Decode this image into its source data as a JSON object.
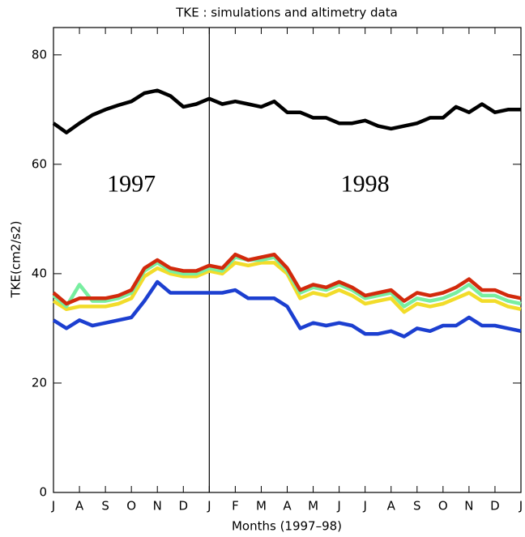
{
  "chart_data": {
    "type": "line",
    "title": "TKE : simulations and altimetry data",
    "xlabel": "Months (1997–98)",
    "ylabel": "TKE(cm2/s2)",
    "annotations": [
      {
        "text": "1997",
        "x": 3,
        "y": 56
      },
      {
        "text": "1998",
        "x": 12,
        "y": 56
      }
    ],
    "vline": 6,
    "xlim": [
      0,
      18
    ],
    "xticks": [
      {
        "value": 0,
        "label": "J"
      },
      {
        "value": 1,
        "label": "A"
      },
      {
        "value": 2,
        "label": "S"
      },
      {
        "value": 3,
        "label": "O"
      },
      {
        "value": 4,
        "label": "N"
      },
      {
        "value": 5,
        "label": "D"
      },
      {
        "value": 6,
        "label": "J"
      },
      {
        "value": 7,
        "label": "F"
      },
      {
        "value": 8,
        "label": "M"
      },
      {
        "value": 9,
        "label": "A"
      },
      {
        "value": 10,
        "label": "M"
      },
      {
        "value": 11,
        "label": "J"
      },
      {
        "value": 12,
        "label": "J"
      },
      {
        "value": 13,
        "label": "A"
      },
      {
        "value": 14,
        "label": "S"
      },
      {
        "value": 15,
        "label": "O"
      },
      {
        "value": 16,
        "label": "N"
      },
      {
        "value": 17,
        "label": "D"
      },
      {
        "value": 18,
        "label": "J"
      }
    ],
    "ylim": [
      0,
      85
    ],
    "yticks": [
      0,
      20,
      40,
      60,
      80
    ],
    "x": [
      0,
      0.5,
      1,
      1.5,
      2,
      2.5,
      3,
      3.5,
      4,
      4.5,
      5,
      5.5,
      6,
      6.5,
      7,
      7.5,
      8,
      8.5,
      9,
      9.5,
      10,
      10.5,
      11,
      11.5,
      12,
      12.5,
      13,
      13.5,
      14,
      14.5,
      15,
      15.5,
      16,
      16.5,
      17,
      17.5,
      18
    ],
    "series": [
      {
        "color": "#f2dc2a",
        "values": [
          35,
          33.5,
          34,
          34,
          34,
          34.5,
          35.5,
          39.5,
          41,
          40,
          39.5,
          39.5,
          40.5,
          40,
          42,
          41.5,
          42,
          42,
          40,
          35.5,
          36.5,
          36,
          37,
          36,
          34.5,
          35,
          35.5,
          33,
          34.5,
          34,
          34.5,
          35.5,
          36.5,
          35,
          35,
          34,
          33.5
        ]
      },
      {
        "color": "#78eea0",
        "values": [
          36,
          34,
          38,
          35,
          35,
          35.5,
          36.5,
          40.5,
          42,
          40.5,
          40,
          40,
          41,
          40.5,
          43,
          42.5,
          42.5,
          43,
          40.5,
          36.5,
          37.5,
          37,
          38,
          37,
          35.5,
          36,
          36.5,
          34,
          35.5,
          35,
          35.5,
          36.5,
          38,
          36,
          36,
          35,
          34.5
        ]
      },
      {
        "color": "#d22a0c",
        "values": [
          36.5,
          34.5,
          35.5,
          35.5,
          35.5,
          36,
          37,
          41,
          42.5,
          41,
          40.5,
          40.5,
          41.5,
          41,
          43.5,
          42.5,
          43,
          43.5,
          41,
          37,
          38,
          37.5,
          38.5,
          37.5,
          36,
          36.5,
          37,
          35,
          36.5,
          36,
          36.5,
          37.5,
          39,
          37,
          37,
          36,
          35.5
        ]
      },
      {
        "color": "#1c3fd0",
        "values": [
          31.5,
          30,
          31.5,
          30.5,
          31,
          31.5,
          32,
          35,
          38.5,
          36.5,
          36.5,
          36.5,
          36.5,
          36.5,
          37,
          35.5,
          35.5,
          35.5,
          34,
          30,
          31,
          30.5,
          31,
          30.5,
          29,
          29,
          29.5,
          28.5,
          30,
          29.5,
          30.5,
          30.5,
          32,
          30.5,
          30.5,
          30,
          29.5
        ]
      },
      {
        "color": "#000000",
        "values": [
          67.5,
          65.8,
          67.5,
          69,
          70,
          70.8,
          71.5,
          73,
          73.5,
          72.5,
          70.5,
          71,
          72,
          71,
          71.5,
          71,
          70.5,
          71.5,
          69.5,
          69.5,
          68.5,
          68.5,
          67.5,
          67.5,
          68,
          67,
          66.5,
          67,
          67.5,
          68.5,
          68.5,
          70.5,
          69.5,
          71,
          69.5,
          70,
          70
        ]
      }
    ]
  }
}
